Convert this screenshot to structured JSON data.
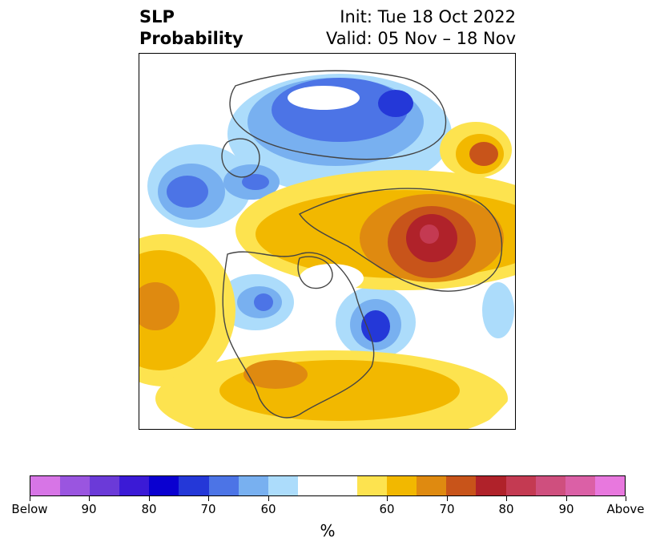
{
  "header": {
    "title_line1": "SLP",
    "title_line2": "Probability",
    "init_text": "Init: Tue 18 Oct 2022",
    "valid_text": "Valid: 05 Nov – 18 Nov"
  },
  "map": {
    "projection": "north-polar-stereographic",
    "variable": "sea level pressure tercile probability"
  },
  "colorbar": {
    "units_label": "%",
    "segments": [
      "#d775e6",
      "#9a55e0",
      "#6b3ad8",
      "#3b1ad6",
      "#0a00d0",
      "#2438d8",
      "#4c74e6",
      "#78b0f0",
      "#acdcfb",
      "#ffffff",
      "#fde34f",
      "#f2b800",
      "#df8a10",
      "#c8541a",
      "#b0222a",
      "#c43a52",
      "#cf4f7e",
      "#db60a6",
      "#e878de"
    ],
    "tick_labels": [
      "Below",
      "90",
      "80",
      "70",
      "60",
      "60",
      "70",
      "80",
      "90",
      "Above"
    ]
  }
}
